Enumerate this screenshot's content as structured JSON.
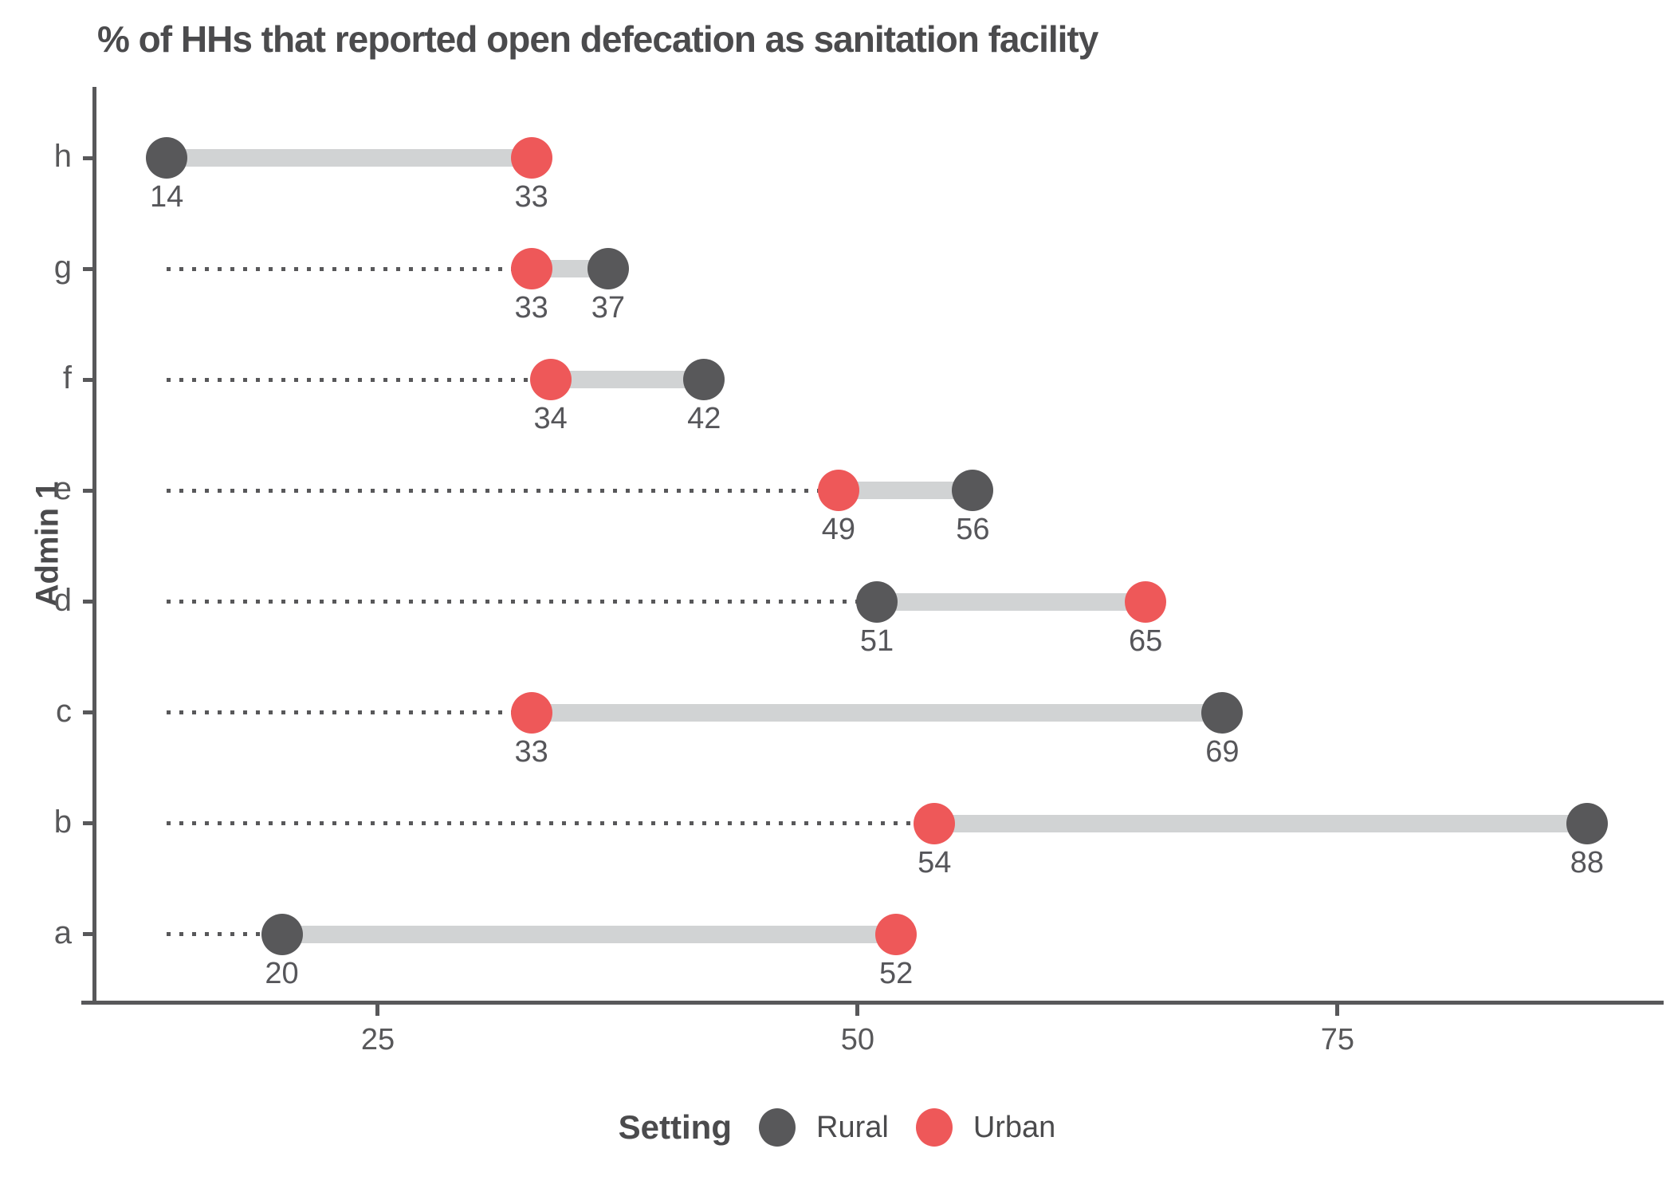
{
  "title": "% of HHs that reported open defecation as sanitation facility",
  "y_axis_title": "Admin 1",
  "colors": {
    "rural": "#58585A",
    "urban": "#EE5859",
    "band": "#D1D3D4",
    "axis": "#58585A",
    "text": "#4b4b4d"
  },
  "legend": {
    "title": "Setting",
    "items": [
      {
        "label": "Rural",
        "color": "#58585A"
      },
      {
        "label": "Urban",
        "color": "#EE5859"
      }
    ]
  },
  "chart_data": {
    "type": "dumbbell",
    "title": "% of HHs that reported open defecation as sanitation facility",
    "ylabel": "Admin 1",
    "xlabel": "",
    "categories": [
      "h",
      "g",
      "f",
      "e",
      "d",
      "c",
      "b",
      "a"
    ],
    "series": [
      {
        "name": "Rural",
        "color": "#58585A",
        "values": [
          14,
          37,
          42,
          56,
          51,
          69,
          88,
          20
        ]
      },
      {
        "name": "Urban",
        "color": "#EE5859",
        "values": [
          33,
          33,
          34,
          49,
          65,
          33,
          54,
          52
        ]
      }
    ],
    "x_ticks": [
      25,
      50,
      75
    ],
    "xlim": [
      10.3,
      91.7
    ],
    "dotted_line_start_value": 14,
    "grid": false,
    "legend_position": "bottom",
    "value_labels_shown": true
  }
}
